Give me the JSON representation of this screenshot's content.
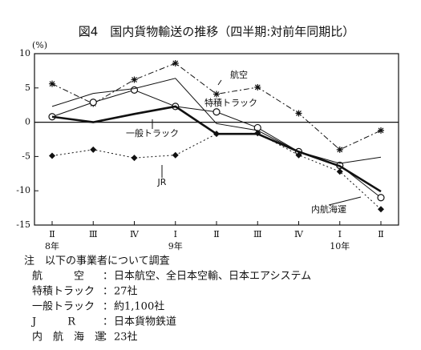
{
  "chart_data": {
    "type": "line",
    "title": "図4　国内貨物輸送の推移（四半期:対前年同期比）",
    "y_unit": "(%)",
    "categories": [
      "Ⅱ",
      "Ⅲ",
      "Ⅳ",
      "Ⅰ",
      "Ⅱ",
      "Ⅲ",
      "Ⅳ",
      "Ⅰ",
      "Ⅱ"
    ],
    "year_labels": [
      "8年",
      null,
      null,
      "9年",
      null,
      null,
      null,
      "10年",
      null
    ],
    "ylim": [
      -15,
      10
    ],
    "yticks": [
      10,
      5,
      0,
      -5,
      -10,
      -15
    ],
    "series": [
      {
        "name": "航空",
        "color": "#111",
        "marker": "asterisk",
        "dash": "7 3 2 3",
        "width": 1,
        "values": [
          5.6,
          2.7,
          6.2,
          8.6,
          4.1,
          5.1,
          1.3,
          -4.0,
          -1.2
        ]
      },
      {
        "name": "特積トラック",
        "color": "#111",
        "marker": "circle",
        "dash": "",
        "width": 1,
        "values": [
          0.8,
          2.9,
          4.7,
          2.3,
          1.5,
          -0.8,
          -4.3,
          -6.3,
          -11.0
        ]
      },
      {
        "name": "一般トラック",
        "color": "#111",
        "marker": "none",
        "dash": "",
        "width": 2.6,
        "values": [
          0.8,
          0,
          1.2,
          2.3,
          -1.7,
          -1.7,
          -4.3,
          -6.4,
          -10.1
        ]
      },
      {
        "name": "JR",
        "color": "#111",
        "marker": "diamond",
        "dash": "2 3",
        "width": 1,
        "values": [
          -4.9,
          -4.0,
          -5.2,
          -4.8,
          -1.7,
          -1.6,
          -4.8,
          -7.2,
          -12.7
        ]
      },
      {
        "name": "内航海運",
        "color": "#111",
        "marker": "none",
        "dash": "",
        "width": 1,
        "values": [
          2.3,
          4.2,
          4.9,
          6.4,
          -0.2,
          -1.2,
          -4.3,
          -6.0,
          -5.1
        ]
      }
    ]
  },
  "notes": {
    "heading": "注　以下の事業者について調査",
    "rows": [
      {
        "label": "航　　　空",
        "text": "日本航空、全日本空輸、日本エアシステム"
      },
      {
        "label": "特積トラック",
        "text": "27社"
      },
      {
        "label": "一般トラック",
        "text": "約1,100社"
      },
      {
        "label": "J　　　R",
        "text": "日本貨物鉄道"
      },
      {
        "label": "内　航　海　運",
        "text": "23社"
      }
    ]
  }
}
